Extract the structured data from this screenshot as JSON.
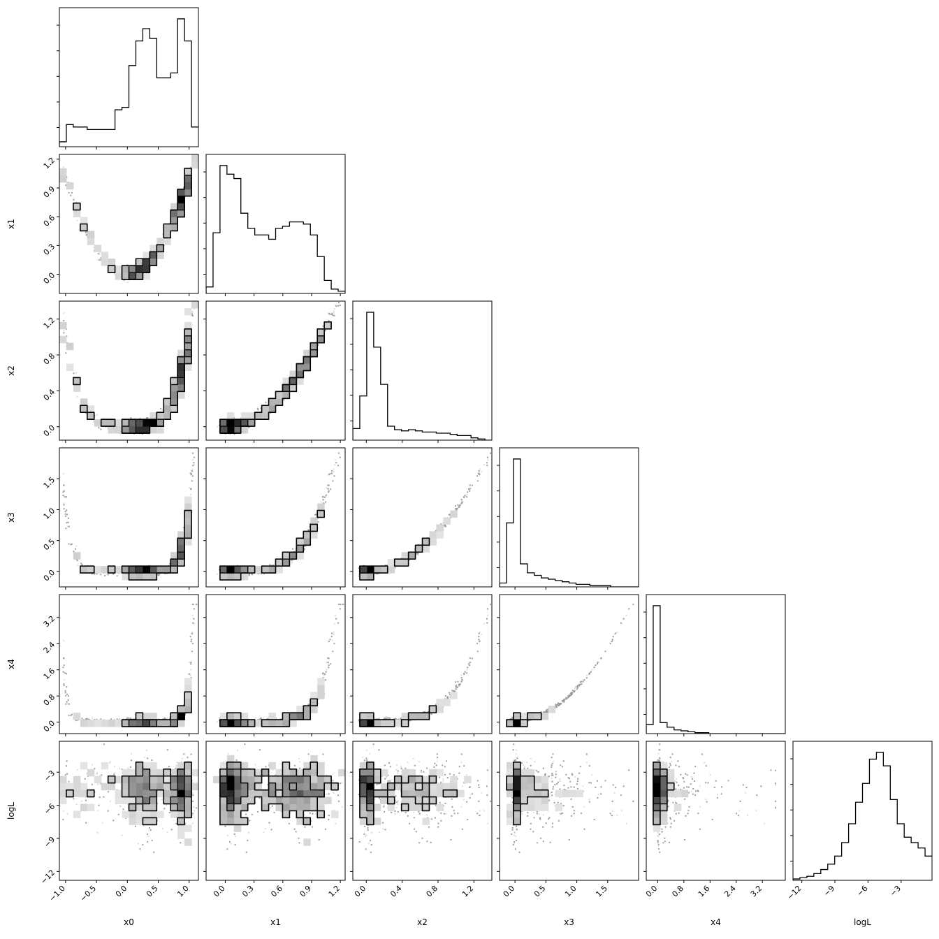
{
  "chart_data": {
    "type": "corner",
    "parameters": [
      "x0",
      "x1",
      "x2",
      "x3",
      "x4",
      "logL"
    ],
    "ranges": {
      "x0": [
        -1.1,
        1.15
      ],
      "x1": [
        -0.2,
        1.25
      ],
      "x2": [
        -0.15,
        1.4
      ],
      "x3": [
        -0.25,
        2.0
      ],
      "x4": [
        -0.35,
        3.9
      ],
      "logL": [
        -12.8,
        -0.2
      ]
    },
    "ticks": {
      "x0": [
        -1.0,
        -0.5,
        0.0,
        0.5,
        1.0
      ],
      "x1": [
        0.0,
        0.3,
        0.6,
        0.9,
        1.2
      ],
      "x2": [
        0.0,
        0.4,
        0.8,
        1.2
      ],
      "x3": [
        0.0,
        0.5,
        1.0,
        1.5
      ],
      "x4": [
        0.0,
        0.8,
        1.6,
        2.4,
        3.2
      ],
      "logL": [
        -12,
        -9,
        -6,
        -3
      ]
    },
    "tick_labels": {
      "x0": [
        "−1.0",
        "−0.5",
        "0.0",
        "0.5",
        "1.0"
      ],
      "x1": [
        "0.0",
        "0.3",
        "0.6",
        "0.9",
        "1.2"
      ],
      "x2": [
        "0.0",
        "0.4",
        "0.8",
        "1.2"
      ],
      "x3": [
        "0.0",
        "0.5",
        "1.0",
        "1.5"
      ],
      "x4": [
        "0.0",
        "0.8",
        "1.6",
        "2.4",
        "3.2"
      ],
      "logL": [
        "−12",
        "−9",
        "−6",
        "−3"
      ]
    },
    "histograms": {
      "x0": [
        2,
        9,
        8,
        8,
        7,
        7,
        7,
        7,
        15,
        16,
        33,
        43,
        48,
        44,
        28,
        28,
        30,
        52,
        43,
        8
      ],
      "x1": [
        3,
        28,
        59,
        55,
        53,
        37,
        30,
        27,
        27,
        25,
        30,
        31,
        33,
        33,
        32,
        27,
        17,
        6,
        2,
        1
      ],
      "x2": [
        10,
        38,
        110,
        80,
        48,
        12,
        9,
        8,
        9,
        8,
        7,
        7,
        6,
        6,
        5,
        4,
        4,
        2,
        1,
        0
      ],
      "x3": [
        3,
        50,
        100,
        18,
        11,
        9,
        7,
        6,
        5,
        4,
        3,
        2,
        2,
        1,
        1,
        1,
        0,
        0,
        0,
        0
      ],
      "x4": [
        10,
        140,
        12,
        7,
        4,
        3,
        2,
        1,
        1,
        0,
        0,
        0,
        0,
        0,
        0,
        0,
        0,
        0,
        0,
        0
      ],
      "logL": [
        1,
        2,
        3,
        5,
        8,
        12,
        18,
        28,
        42,
        58,
        72,
        90,
        95,
        85,
        60,
        42,
        32,
        28,
        24,
        18
      ]
    },
    "axis_labels": [
      "x0",
      "x1",
      "x2",
      "x3",
      "x4",
      "logL"
    ],
    "grid": false,
    "legend": "none"
  }
}
